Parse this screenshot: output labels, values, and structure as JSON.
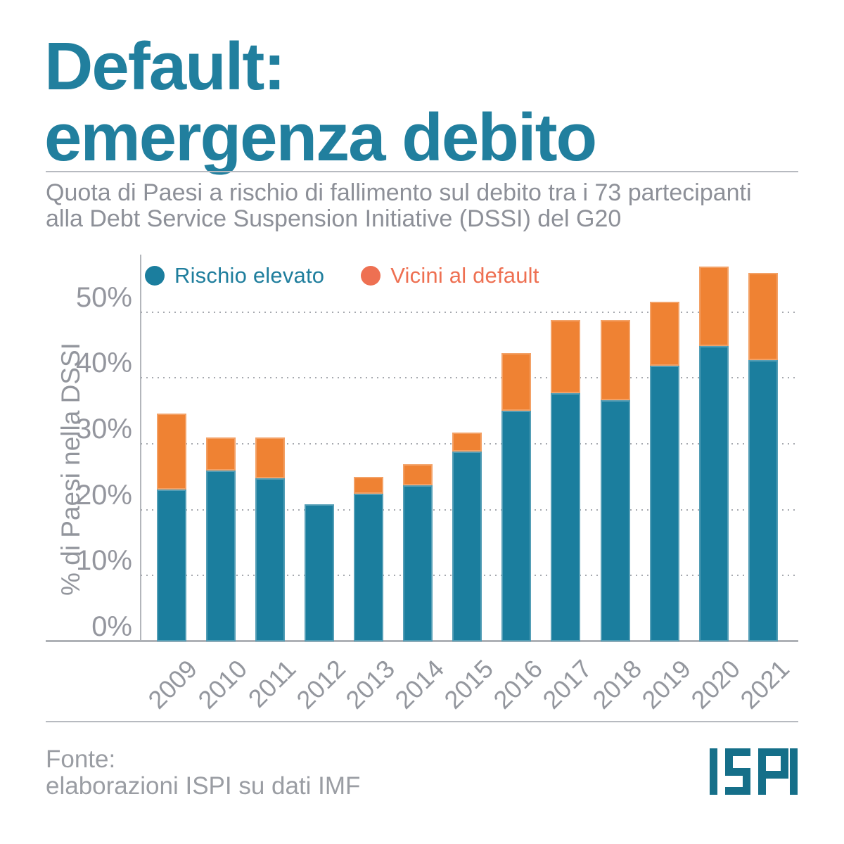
{
  "header": {
    "title_line1": "Default:",
    "title_line2": "emergenza debito",
    "subtitle_line1": "Quota di Paesi a rischio di fallimento sul debito tra i 73 partecipanti",
    "subtitle_line2": "alla Debt Service Suspension Initiative (DSSI) del G20"
  },
  "legend": [
    {
      "label": "Rischio elevato",
      "dot_color": "#1b7e9e",
      "text_color": "#1f7e9d"
    },
    {
      "label": "Vicini al default",
      "dot_color": "#ee7052",
      "text_color": "#ee7052"
    }
  ],
  "chart_data": {
    "type": "bar",
    "stacked": true,
    "categories": [
      "2009",
      "2010",
      "2011",
      "2012",
      "2013",
      "2014",
      "2015",
      "2016",
      "2017",
      "2018",
      "2019",
      "2020",
      "2021"
    ],
    "series": [
      {
        "name": "Rischio elevato",
        "color": "#1b7e9e",
        "values": [
          23.0,
          25.9,
          24.8,
          20.8,
          22.4,
          23.7,
          28.8,
          35.0,
          37.7,
          36.6,
          41.8,
          44.8,
          42.7
        ]
      },
      {
        "name": "Vicini al default",
        "color": "#ef8233",
        "values": [
          11.6,
          5.0,
          6.1,
          0.0,
          2.6,
          3.2,
          2.9,
          8.8,
          11.1,
          12.2,
          9.7,
          12.1,
          13.2
        ]
      }
    ],
    "totals": [
      34.6,
      30.9,
      30.9,
      20.8,
      25.0,
      26.9,
      31.7,
      43.8,
      48.8,
      48.8,
      51.5,
      56.9,
      55.9
    ],
    "title": "Quota di Paesi a rischio di fallimento sul debito tra i 73 partecipanti alla Debt Service Suspension Initiative (DSSI) del G20",
    "xlabel": "",
    "ylabel": "% di Paesi nella DSSI",
    "yticks": [
      "0%",
      "10%",
      "20%",
      "30%",
      "40%",
      "50%"
    ],
    "ytick_values": [
      0,
      10,
      20,
      30,
      40,
      50
    ],
    "ylim": [
      0,
      58.7
    ],
    "grid": "horizontal-dotted",
    "legend_position": "top-inside"
  },
  "footer": {
    "source_line1": "Fonte:",
    "source_line2": "elaborazioni ISPI su dati IMF",
    "logo_text": "ISPI"
  },
  "colors": {
    "title": "#217f9e",
    "subtitle": "#8d9098",
    "bar_teal": "#1b7e9e",
    "bar_orange": "#ef8233",
    "legend_coral": "#ee7052",
    "axis_gray": "#b3b6bb",
    "grid_gray": "#a6a9af",
    "tick_gray": "#94969e",
    "logo_teal": "#156f89"
  }
}
